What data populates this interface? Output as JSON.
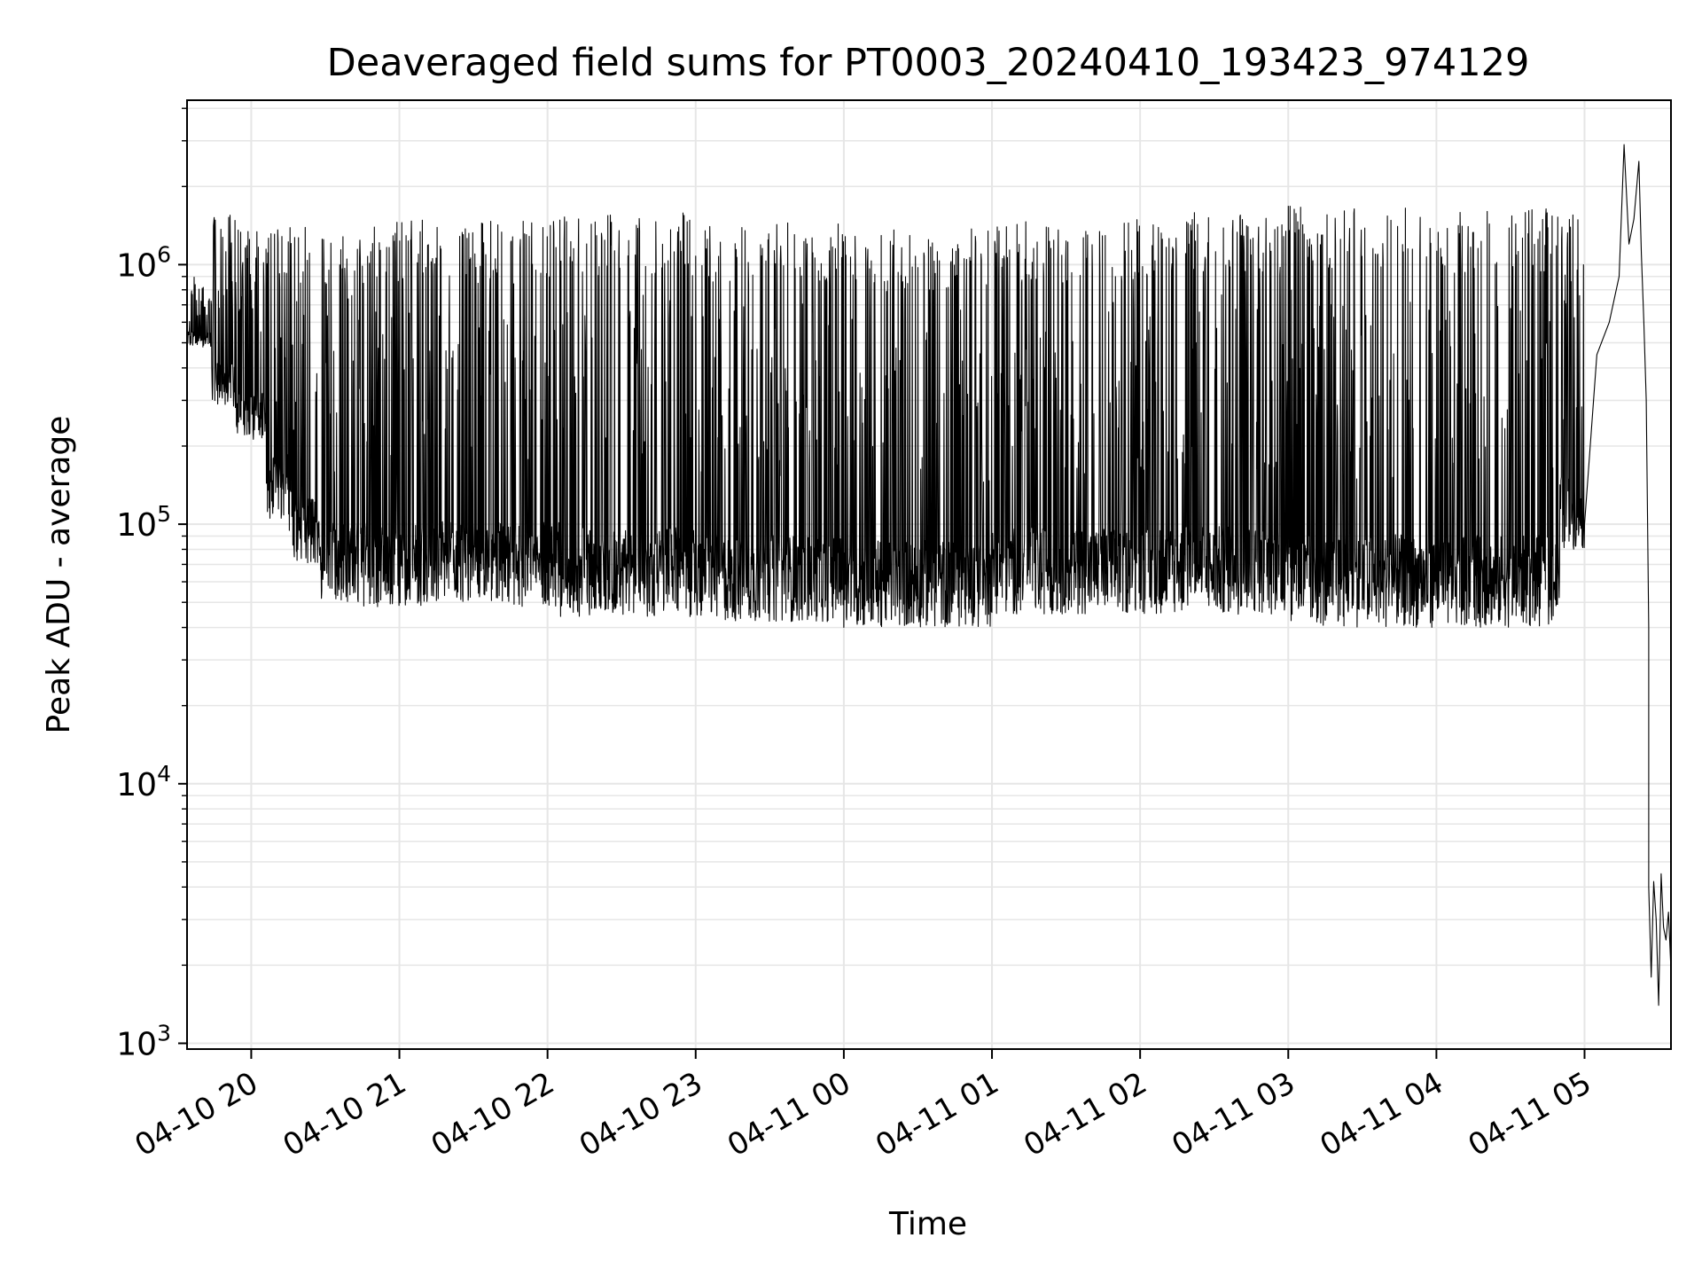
{
  "chart_data": {
    "type": "line",
    "title": "Deaveraged field sums for PT0003_20240410_193423_974129",
    "xlabel": "Time",
    "ylabel": "Peak ADU - average",
    "y_scale": "log",
    "ylim": [
      950,
      4300000
    ],
    "xlim": [
      "2024-04-10 19:34",
      "2024-04-11 05:35"
    ],
    "x_tick_labels": [
      "04-10 20",
      "04-10 21",
      "04-10 22",
      "04-10 23",
      "04-11 00",
      "04-11 01",
      "04-11 02",
      "04-11 03",
      "04-11 04",
      "04-11 05"
    ],
    "x_ticks": [
      "2024-04-10 20:00",
      "2024-04-10 21:00",
      "2024-04-10 22:00",
      "2024-04-10 23:00",
      "2024-04-11 00:00",
      "2024-04-11 01:00",
      "2024-04-11 02:00",
      "2024-04-11 03:00",
      "2024-04-11 04:00",
      "2024-04-11 05:00"
    ],
    "y_ticks": [
      {
        "value": 1000,
        "base": "10",
        "exp": "3"
      },
      {
        "value": 10000,
        "base": "10",
        "exp": "4"
      },
      {
        "value": 100000,
        "base": "10",
        "exp": "5"
      },
      {
        "value": 1000000,
        "base": "10",
        "exp": "6"
      }
    ],
    "grid": true,
    "line_color": "#000000",
    "grid_color": "#e6e6e6",
    "series": [
      {
        "approximate": true,
        "segments": [
          {
            "from": "2024-04-10 19:34",
            "to": "2024-04-10 19:44",
            "low": 480000,
            "high": 900000
          },
          {
            "from": "2024-04-10 19:44",
            "to": "2024-04-10 19:54",
            "low": 280000,
            "high": 1700000
          },
          {
            "from": "2024-04-10 19:54",
            "to": "2024-04-10 20:06",
            "low": 210000,
            "high": 1400000
          },
          {
            "from": "2024-04-10 20:06",
            "to": "2024-04-10 20:15",
            "low": 105000,
            "high": 1400000
          },
          {
            "from": "2024-04-10 20:15",
            "to": "2024-04-10 20:27",
            "low": 70000,
            "high": 1450000
          },
          {
            "from": "2024-04-10 20:27",
            "to": "2024-04-10 20:45",
            "low": 50000,
            "high": 1300000
          },
          {
            "from": "2024-04-10 20:45",
            "to": "2024-04-10 21:05",
            "low": 48000,
            "high": 1500000
          },
          {
            "from": "2024-04-10 21:05",
            "to": "2024-04-10 22:05",
            "low": 48000,
            "high": 1500000
          },
          {
            "from": "2024-04-10 22:05",
            "to": "2024-04-10 23:00",
            "low": 44000,
            "high": 1600000
          },
          {
            "from": "2024-04-10 23:00",
            "to": "2024-04-11 00:00",
            "low": 42000,
            "high": 1450000
          },
          {
            "from": "2024-04-11 00:00",
            "to": "2024-04-11 01:00",
            "low": 40000,
            "high": 1400000
          },
          {
            "from": "2024-04-11 01:00",
            "to": "2024-04-11 02:00",
            "low": 45000,
            "high": 1500000
          },
          {
            "from": "2024-04-11 02:00",
            "to": "2024-04-11 03:00",
            "low": 45000,
            "high": 1600000
          },
          {
            "from": "2024-04-11 03:00",
            "to": "2024-04-11 04:00",
            "low": 40000,
            "high": 1700000
          },
          {
            "from": "2024-04-11 04:00",
            "to": "2024-04-11 04:50",
            "low": 40000,
            "high": 1650000
          },
          {
            "from": "2024-04-11 04:50",
            "to": "2024-04-11 05:00",
            "low": 80000,
            "high": 1600000
          }
        ],
        "points": [
          {
            "x": "2024-04-11 05:00",
            "y": 100000
          },
          {
            "x": "2024-04-11 05:05",
            "y": 450000
          },
          {
            "x": "2024-04-11 05:10",
            "y": 600000
          },
          {
            "x": "2024-04-11 05:14",
            "y": 900000
          },
          {
            "x": "2024-04-11 05:16",
            "y": 2900000
          },
          {
            "x": "2024-04-11 05:18",
            "y": 1200000
          },
          {
            "x": "2024-04-11 05:20",
            "y": 1500000
          },
          {
            "x": "2024-04-11 05:22",
            "y": 2500000
          },
          {
            "x": "2024-04-11 05:23",
            "y": 1100000
          },
          {
            "x": "2024-04-11 05:24",
            "y": 600000
          },
          {
            "x": "2024-04-11 05:25",
            "y": 300000
          },
          {
            "x": "2024-04-11 05:26",
            "y": 40000
          },
          {
            "x": "2024-04-11 05:26",
            "y": 4000
          },
          {
            "x": "2024-04-11 05:27",
            "y": 1800
          },
          {
            "x": "2024-04-11 05:28",
            "y": 4200
          },
          {
            "x": "2024-04-11 05:29",
            "y": 3000
          },
          {
            "x": "2024-04-11 05:30",
            "y": 1400
          },
          {
            "x": "2024-04-11 05:31",
            "y": 4500
          },
          {
            "x": "2024-04-11 05:32",
            "y": 2800
          },
          {
            "x": "2024-04-11 05:33",
            "y": 2500
          },
          {
            "x": "2024-04-11 05:34",
            "y": 3200
          },
          {
            "x": "2024-04-11 05:35",
            "y": 1900
          }
        ]
      }
    ]
  }
}
